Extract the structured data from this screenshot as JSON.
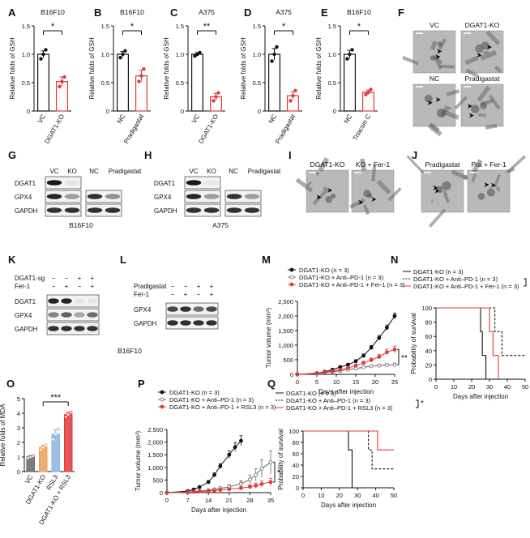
{
  "colors": {
    "black": "#111111",
    "red": "#e23a3a",
    "gray": "#666666",
    "orange": "#e8a15a",
    "blue": "#8fb5de",
    "em_bg": "#b9b9b9",
    "em_dark": "#6a6a6a"
  },
  "panel_letters": [
    "A",
    "B",
    "C",
    "D",
    "E",
    "F",
    "G",
    "H",
    "I",
    "J",
    "K",
    "L",
    "M",
    "N",
    "O",
    "P",
    "Q"
  ],
  "chart_data": [
    {
      "panel": "A",
      "type": "bar",
      "title": "B16F10",
      "ylabel": "Relative folds of GSH",
      "categories": [
        "VC",
        "DGAT1-KO"
      ],
      "values": [
        1.0,
        0.52
      ],
      "errors": [
        0.06,
        0.08
      ],
      "points": [
        [
          0.92,
          1.0,
          1.08
        ],
        [
          0.43,
          0.52,
          0.6
        ]
      ],
      "ylim": [
        0,
        1.5
      ],
      "yticks": [
        "0",
        "0.5",
        "1.0",
        "1.5"
      ],
      "sig": "*",
      "bar_colors": [
        "black",
        "red"
      ]
    },
    {
      "panel": "B",
      "type": "bar",
      "title": "B16F10",
      "ylabel": "Relative folds of GSH",
      "categories": [
        "NC",
        "Pradigastat"
      ],
      "values": [
        1.0,
        0.62
      ],
      "errors": [
        0.05,
        0.1
      ],
      "points": [
        [
          0.94,
          1.0,
          1.06
        ],
        [
          0.52,
          0.62,
          0.74
        ]
      ],
      "ylim": [
        0,
        1.5
      ],
      "yticks": [
        "0",
        "0.5",
        "1.0",
        "1.5"
      ],
      "sig": "*",
      "bar_colors": [
        "black",
        "red"
      ]
    },
    {
      "panel": "C",
      "type": "bar",
      "title": "A375",
      "ylabel": "Relative folds of GSH",
      "categories": [
        "VC",
        "DGAT1-KO"
      ],
      "values": [
        1.0,
        0.25
      ],
      "errors": [
        0.03,
        0.06
      ],
      "points": [
        [
          0.97,
          1.0,
          1.03
        ],
        [
          0.18,
          0.25,
          0.32
        ]
      ],
      "ylim": [
        0,
        1.5
      ],
      "yticks": [
        "0",
        "0.5",
        "1.0",
        "1.5"
      ],
      "sig": "**",
      "bar_colors": [
        "black",
        "red"
      ]
    },
    {
      "panel": "D",
      "type": "bar",
      "title": "A375",
      "ylabel": "Relative folds of GSH",
      "categories": [
        "NC",
        "Pradigastat"
      ],
      "values": [
        1.0,
        0.27
      ],
      "errors": [
        0.1,
        0.07
      ],
      "points": [
        [
          0.88,
          1.0,
          1.13
        ],
        [
          0.18,
          0.27,
          0.36
        ]
      ],
      "ylim": [
        0,
        1.5
      ],
      "yticks": [
        "0",
        "0.5",
        "1.0",
        "1.5"
      ],
      "sig": "*",
      "bar_colors": [
        "black",
        "red"
      ]
    },
    {
      "panel": "E",
      "type": "bar",
      "title": "B16F10",
      "ylabel": "Relative folds of GSH",
      "categories": [
        "NC",
        "Triacsin C"
      ],
      "values": [
        1.0,
        0.33
      ],
      "errors": [
        0.07,
        0.04
      ],
      "points": [
        [
          0.92,
          1.0,
          1.08
        ],
        [
          0.29,
          0.33,
          0.38
        ]
      ],
      "ylim": [
        0,
        1.5
      ],
      "yticks": [
        "0",
        "0.5",
        "1.0",
        "1.5"
      ],
      "sig": "*",
      "bar_colors": [
        "black",
        "red"
      ]
    },
    {
      "panel": "M",
      "type": "line",
      "ylabel": "Tumor volume (mm³)",
      "xlabel": "Days after injection",
      "x": [
        0,
        5,
        7,
        9,
        11,
        13,
        15,
        17,
        19,
        21,
        23,
        25
      ],
      "xlim": [
        0,
        25
      ],
      "ylim": [
        0,
        2500
      ],
      "xticks": [
        "0",
        "5",
        "10",
        "15",
        "20",
        "25"
      ],
      "yticks": [
        "0",
        "500",
        "1,000",
        "1,500",
        "2,000",
        "2,500"
      ],
      "sig": "**",
      "series": [
        {
          "name": "DGAT1-KO (n = 3)",
          "color": "black",
          "marker": "filled",
          "values": [
            0,
            40,
            90,
            160,
            250,
            330,
            450,
            640,
            920,
            1250,
            1600,
            2000
          ],
          "errors": [
            0,
            10,
            15,
            25,
            35,
            40,
            50,
            60,
            70,
            80,
            90,
            100
          ]
        },
        {
          "name": "DGAT1-KO + Anti–PD-1 (n = 3)",
          "color": "gray",
          "marker": "open",
          "values": [
            0,
            30,
            60,
            90,
            120,
            160,
            200,
            240,
            280,
            300,
            320,
            330
          ],
          "errors": [
            0,
            8,
            10,
            15,
            20,
            25,
            30,
            35,
            40,
            45,
            50,
            55
          ]
        },
        {
          "name": "DGAT1-KO + Anti–PD-1 + Fer-1 (n = 3)",
          "color": "red",
          "marker": "filled",
          "values": [
            0,
            35,
            70,
            110,
            160,
            220,
            300,
            390,
            490,
            600,
            760,
            850
          ],
          "errors": [
            0,
            10,
            15,
            20,
            30,
            40,
            50,
            60,
            70,
            80,
            100,
            120
          ]
        }
      ]
    },
    {
      "panel": "N",
      "type": "line",
      "ylabel": "Probability of survival",
      "xlabel": "Days after injection",
      "xlim": [
        0,
        50
      ],
      "ylim": [
        0,
        100
      ],
      "xticks": [
        "0",
        "10",
        "20",
        "30",
        "40",
        "50"
      ],
      "yticks": [
        "0",
        "20",
        "40",
        "60",
        "80",
        "100"
      ],
      "series": [
        {
          "name": "DGAT1-KO (n = 3)",
          "color": "black",
          "dash": false,
          "steps": [
            [
              0,
              100
            ],
            [
              25,
              100
            ],
            [
              25,
              66.7
            ],
            [
              26,
              66.7
            ],
            [
              26,
              33.3
            ],
            [
              28,
              33.3
            ],
            [
              28,
              0
            ]
          ]
        },
        {
          "name": "DGAT1-KO + Anti–PD-1 (n = 3)",
          "color": "black",
          "dash": true,
          "steps": [
            [
              0,
              100
            ],
            [
              33,
              100
            ],
            [
              33,
              66.7
            ],
            [
              37,
              66.7
            ],
            [
              37,
              33.3
            ],
            [
              50,
              33.3
            ]
          ]
        },
        {
          "name": "DGAT1-KO + Anti–PD-1 + Fer-1 (n = 3)",
          "color": "red",
          "dash": false,
          "steps": [
            [
              0,
              100
            ],
            [
              30,
              100
            ],
            [
              30,
              66.7
            ],
            [
              32,
              66.7
            ],
            [
              32,
              33.3
            ],
            [
              35,
              33.3
            ],
            [
              35,
              0
            ]
          ]
        }
      ]
    },
    {
      "panel": "O",
      "type": "bar",
      "ylabel": "Relative folds of MDA",
      "categories": [
        "VC",
        "DGAT1-KO",
        "RSL3",
        "DGAT1-KO + RSL3"
      ],
      "values": [
        1.0,
        1.65,
        2.55,
        3.9
      ],
      "errors": [
        0.08,
        0.15,
        0.3,
        0.15
      ],
      "ylim": [
        0,
        5
      ],
      "yticks": [
        "0",
        "1",
        "2",
        "3",
        "4",
        "5"
      ],
      "points": [
        [
          0.92,
          1.0,
          1.06
        ],
        [
          1.5,
          1.65,
          1.8
        ],
        [
          2.2,
          2.55,
          2.9
        ],
        [
          3.75,
          3.9,
          4.05
        ]
      ],
      "sig": "***",
      "bar_colors": [
        "gray",
        "orange",
        "blue",
        "red"
      ]
    },
    {
      "panel": "P",
      "type": "line",
      "ylabel": "Tumor volume (mm³)",
      "xlabel": "Days after injection",
      "x": [
        0,
        7,
        9,
        11,
        14,
        16,
        18,
        21,
        25,
        28,
        30,
        32,
        35
      ],
      "xlim": [
        0,
        35
      ],
      "ylim": [
        0,
        2500
      ],
      "xticks": [
        "0",
        "7",
        "14",
        "21",
        "28",
        "35"
      ],
      "yticks": [
        "0",
        "500",
        "1,000",
        "1,500",
        "2,000",
        "2,500"
      ],
      "sig": "*",
      "series": [
        {
          "name": "DGAT1-KO (n = 3)",
          "color": "black",
          "marker": "filled",
          "x": [
            0,
            7,
            9,
            11,
            14,
            16,
            18,
            21,
            23,
            25
          ],
          "values": [
            0,
            60,
            120,
            220,
            420,
            700,
            1050,
            1500,
            1800,
            2050
          ],
          "errors": [
            0,
            15,
            25,
            35,
            60,
            80,
            100,
            150,
            180,
            200
          ]
        },
        {
          "name": "DGAT1-KO + Anti–PD-1 (n = 3)",
          "color": "gray",
          "marker": "open",
          "x": [
            0,
            7,
            9,
            11,
            14,
            16,
            18,
            21,
            25,
            28,
            30,
            32,
            35
          ],
          "values": [
            0,
            20,
            40,
            60,
            90,
            130,
            170,
            230,
            350,
            520,
            700,
            950,
            1200
          ],
          "errors": [
            0,
            10,
            15,
            20,
            30,
            40,
            60,
            80,
            120,
            180,
            250,
            350,
            450
          ]
        },
        {
          "name": "DGAT1-KO + Anti–PD-1 + RSL3 (n = 3)",
          "color": "red",
          "marker": "filled",
          "x": [
            0,
            7,
            9,
            11,
            14,
            16,
            18,
            21,
            25,
            28,
            30,
            32,
            35
          ],
          "values": [
            0,
            15,
            30,
            45,
            60,
            80,
            110,
            140,
            180,
            230,
            280,
            340,
            420
          ],
          "errors": [
            0,
            8,
            10,
            15,
            20,
            25,
            35,
            45,
            60,
            80,
            100,
            120,
            150
          ]
        }
      ]
    },
    {
      "panel": "Q",
      "type": "line",
      "ylabel": "Probability of survival",
      "xlabel": "Days after injection",
      "xlim": [
        0,
        50
      ],
      "ylim": [
        0,
        100
      ],
      "xticks": [
        "0",
        "10",
        "20",
        "30",
        "40",
        "50"
      ],
      "yticks": [
        "0",
        "20",
        "40",
        "60",
        "80",
        "100"
      ],
      "sig": "*",
      "series": [
        {
          "name": "DGAT1-KO (n = 3)",
          "color": "black",
          "dash": false,
          "steps": [
            [
              0,
              100
            ],
            [
              25,
              100
            ],
            [
              25,
              66.7
            ],
            [
              27,
              66.7
            ],
            [
              27,
              0
            ]
          ]
        },
        {
          "name": "DGAT1-KO + Anti–PD-1 (n = 3)",
          "color": "black",
          "dash": true,
          "steps": [
            [
              0,
              100
            ],
            [
              36,
              100
            ],
            [
              36,
              66.7
            ],
            [
              38,
              66.7
            ],
            [
              38,
              33.3
            ],
            [
              50,
              33.3
            ]
          ]
        },
        {
          "name": "DGAT1-KO + Anti–PD-1 + RSL3 (n = 3)",
          "color": "red",
          "dash": false,
          "steps": [
            [
              0,
              100
            ],
            [
              41,
              100
            ],
            [
              41,
              66.7
            ],
            [
              50,
              66.7
            ]
          ]
        }
      ]
    }
  ],
  "em": {
    "F": {
      "tiles": [
        "VC",
        "DGAT1-KO",
        "NC",
        "Pradigastat"
      ]
    },
    "I": {
      "tiles": [
        "DGAT1-KO",
        "KO + Fer-1"
      ]
    },
    "J": {
      "tiles": [
        "Pradigastat",
        "Pra + Fer-1"
      ]
    }
  },
  "western": {
    "G": {
      "lanes_left": [
        "VC",
        "KO"
      ],
      "lanes_right": [
        "NC",
        "Pradigastat"
      ],
      "rows": [
        "DGAT1",
        "GPX4",
        "GAPDH"
      ],
      "cell": "B16F10",
      "intensity_left": [
        [
          0.9,
          0.05
        ],
        [
          0.85,
          0.35
        ],
        [
          0.8,
          0.8
        ]
      ],
      "intensity_right": [
        [
          0,
          0
        ],
        [
          0.8,
          0.4
        ],
        [
          0.8,
          0.8
        ]
      ]
    },
    "H": {
      "lanes_left": [
        "VC",
        "KO"
      ],
      "lanes_right": [
        "NC",
        "Pradigastat"
      ],
      "rows": [
        "DGAT1",
        "GPX4",
        "GAPDH"
      ],
      "cell": "A375",
      "intensity_left": [
        [
          0.9,
          0.05
        ],
        [
          0.85,
          0.35
        ],
        [
          0.8,
          0.8
        ]
      ],
      "intensity_right": [
        [
          0,
          0
        ],
        [
          0.8,
          0.35
        ],
        [
          0.8,
          0.8
        ]
      ]
    },
    "K": {
      "conditions": [
        {
          "name": "DGAT1-sg",
          "marks": [
            "−",
            "−",
            "+",
            "+"
          ]
        },
        {
          "name": "Fer-1",
          "marks": [
            "−",
            "+",
            "−",
            "+"
          ]
        }
      ],
      "rows": [
        "DGAT1",
        "GPX4",
        "GAPDH"
      ],
      "intensity": [
        [
          0.85,
          0.85,
          0.05,
          0.05
        ],
        [
          0.45,
          0.6,
          0.3,
          0.55
        ],
        [
          0.8,
          0.8,
          0.8,
          0.8
        ]
      ]
    },
    "L": {
      "conditions": [
        {
          "name": "Pradigastat",
          "marks": [
            "−",
            "−",
            "+",
            "+"
          ]
        },
        {
          "name": "Fer-1",
          "marks": [
            "−",
            "+",
            "−",
            "+"
          ]
        }
      ],
      "rows": [
        "GPX4",
        "GAPDH"
      ],
      "intensity": [
        [
          0.7,
          0.8,
          0.55,
          0.7
        ],
        [
          0.8,
          0.8,
          0.8,
          0.8
        ]
      ]
    },
    "KL_cell": "B16F10"
  }
}
